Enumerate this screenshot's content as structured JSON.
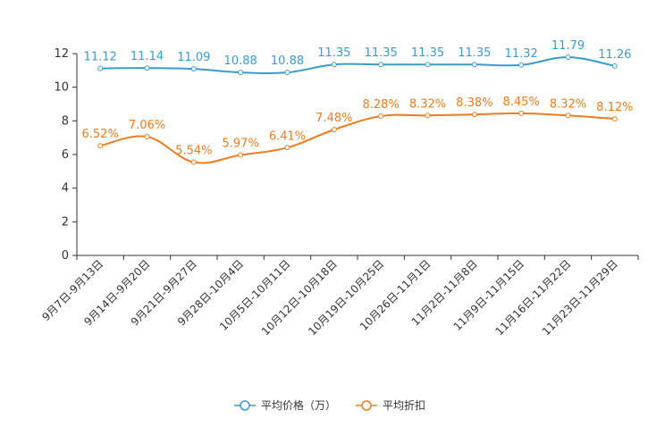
{
  "chart_data": {
    "type": "line",
    "categories": [
      "9月7日-9月13日",
      "9月14日-9月20日",
      "9月21日-9月27日",
      "9月28日-10月4日",
      "10月5日-10月11日",
      "10月12日-10月18日",
      "10月19日-10月25日",
      "10月26日-11月1日",
      "11月2日-11月8日",
      "11月9日-11月15日",
      "11月16日-11月22日",
      "11月23日-11月29日"
    ],
    "series": [
      {
        "name": "平均价格（万）",
        "color": "#3a9bd1",
        "values": [
          11.12,
          11.14,
          11.09,
          10.88,
          10.88,
          11.35,
          11.35,
          11.35,
          11.35,
          11.32,
          11.79,
          11.26
        ],
        "labels": [
          "11.12",
          "11.14",
          "11.09",
          "10.88",
          "10.88",
          "11.35",
          "11.35",
          "11.35",
          "11.35",
          "11.32",
          "11.79",
          "11.26"
        ]
      },
      {
        "name": "平均折扣",
        "color": "#ef7b1f",
        "values": [
          6.52,
          7.06,
          5.54,
          5.97,
          6.41,
          7.48,
          8.28,
          8.32,
          8.38,
          8.45,
          8.32,
          8.12
        ],
        "labels": [
          "6.52%",
          "7.06%",
          "5.54%",
          "5.97%",
          "6.41%",
          "7.48%",
          "8.28%",
          "8.32%",
          "8.38%",
          "8.45%",
          "8.32%",
          "8.12%"
        ]
      }
    ],
    "yticks": [
      "0",
      "2",
      "4",
      "6",
      "8",
      "10",
      "12"
    ],
    "ylim": [
      0,
      12
    ],
    "title": "",
    "xlabel": "",
    "ylabel": "",
    "legend_position": "bottom-center"
  }
}
